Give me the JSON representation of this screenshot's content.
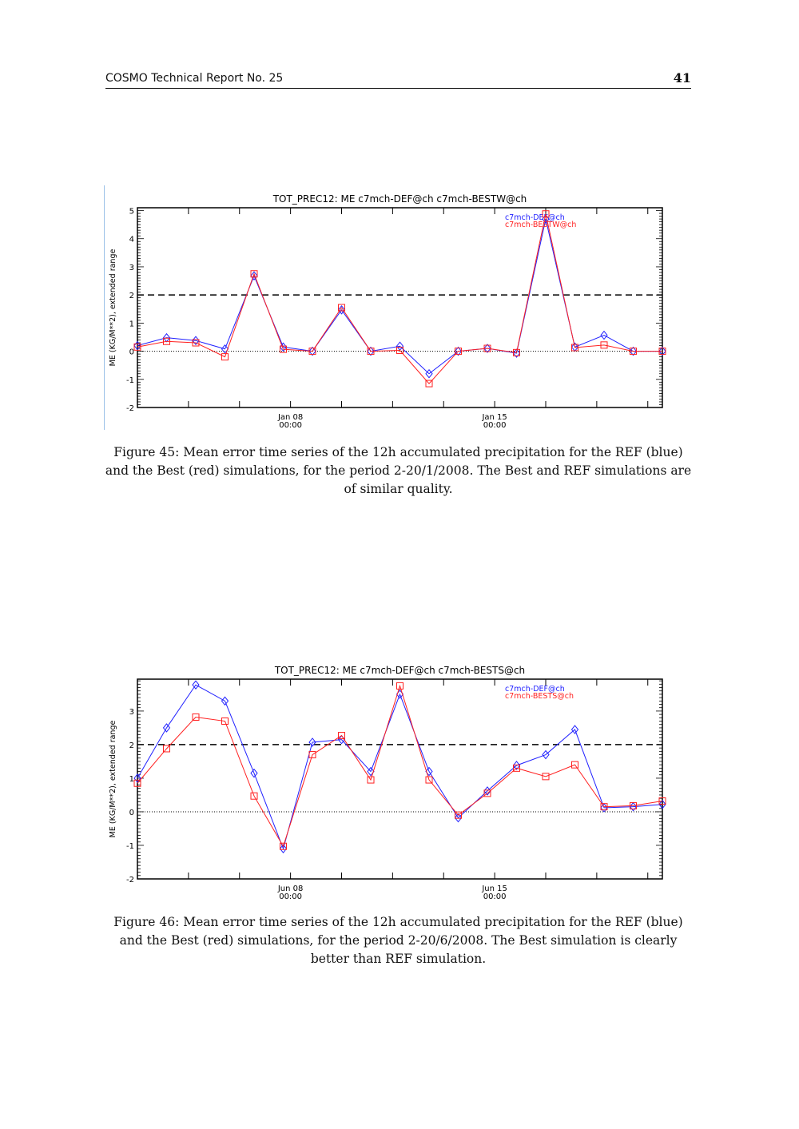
{
  "header": {
    "title": "COSMO Technical Report No. 25",
    "page_number": "41"
  },
  "chart_data": [
    {
      "type": "line",
      "title": "TOT_PREC12: ME c7mch-DEF@ch c7mch-BESTW@ch",
      "ylabel": "ME (KG/M**2), extended range",
      "xlabel": "",
      "ylim": [
        -2,
        5.1
      ],
      "yticks": [
        "-2",
        "-1",
        "0",
        "1",
        "2",
        "3",
        "4",
        "5"
      ],
      "xticks": [
        {
          "label": "Jan 08",
          "sub": "00:00",
          "index": 5.25
        },
        {
          "label": "Jan 15",
          "sub": "00:00",
          "index": 12.25
        }
      ],
      "reference_lines": [
        {
          "y": 2,
          "style": "dashed"
        },
        {
          "y": 0,
          "style": "dotted"
        }
      ],
      "legend": "top-right",
      "series": [
        {
          "name": "c7mch-DEF@ch",
          "color": "#2020ff",
          "marker": "diamond",
          "values": [
            0.2,
            0.48,
            0.38,
            0.08,
            2.68,
            0.15,
            0,
            1.47,
            0,
            0.18,
            -0.8,
            0,
            0.1,
            -0.07,
            4.7,
            0.15,
            0.57,
            0,
            0
          ]
        },
        {
          "name": "c7mch-BESTW@ch",
          "color": "#ff2020",
          "marker": "square",
          "values": [
            0.15,
            0.35,
            0.3,
            -0.2,
            2.75,
            0.07,
            0,
            1.55,
            0,
            0.03,
            -1.15,
            0,
            0.1,
            -0.05,
            4.88,
            0.13,
            0.22,
            0,
            0
          ]
        }
      ]
    },
    {
      "type": "line",
      "title": "TOT_PREC12: ME c7mch-DEF@ch c7mch-BESTS@ch",
      "ylabel": "ME (KG/M**2), extended range",
      "xlabel": "",
      "ylim": [
        -2,
        3.95
      ],
      "yticks": [
        "-2",
        "-1",
        "0",
        "1",
        "2",
        "3"
      ],
      "xticks": [
        {
          "label": "Jun 08",
          "sub": "00:00",
          "index": 5.25
        },
        {
          "label": "Jun 15",
          "sub": "00:00",
          "index": 12.25
        }
      ],
      "reference_lines": [
        {
          "y": 2,
          "style": "dashed"
        },
        {
          "y": 0,
          "style": "dotted"
        }
      ],
      "legend": "top-right",
      "series": [
        {
          "name": "c7mch-DEF@ch",
          "color": "#2020ff",
          "marker": "diamond",
          "values": [
            1.0,
            2.5,
            3.78,
            3.3,
            1.15,
            -1.1,
            2.07,
            2.15,
            1.2,
            3.5,
            1.2,
            -0.18,
            0.62,
            1.38,
            1.7,
            2.45,
            0.12,
            0.15,
            0.22
          ]
        },
        {
          "name": "c7mch-BESTS@ch",
          "color": "#ff2020",
          "marker": "square",
          "values": [
            0.85,
            1.88,
            2.82,
            2.7,
            0.47,
            -1.03,
            1.7,
            2.27,
            0.95,
            3.75,
            0.95,
            -0.1,
            0.55,
            1.3,
            1.05,
            1.4,
            0.15,
            0.18,
            0.32
          ]
        }
      ]
    }
  ],
  "captions": [
    "Figure 45: Mean error time series of the 12h accumulated precipitation for the REF (blue) and the Best (red) simulations, for the period 2-20/1/2008. The Best and REF simulations are of similar quality.",
    "Figure 46: Mean error time series of the 12h accumulated precipitation for the REF (blue) and the Best (red) simulations, for the period 2-20/6/2008. The Best simulation is clearly better than REF simulation."
  ]
}
